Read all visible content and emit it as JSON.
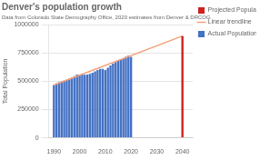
{
  "chart_data": {
    "type": "bar",
    "title": "Denver's population growth",
    "subtitle": "Data from Colorado State Demography Office, 2020 estimates from Denver & DRCOG",
    "ylabel": "Total Population",
    "series": [
      {
        "name": "Projected Population",
        "color": "#cc2222",
        "x": [
          2040
        ],
        "values": [
          900000
        ]
      },
      {
        "name": "Linear trendline",
        "type": "line",
        "color": "#f4a07a",
        "x": [
          1990,
          2040
        ],
        "values": [
          467610,
          900000
        ]
      },
      {
        "name": "Actual Population",
        "color": "#4472c4",
        "x": [
          1990,
          1991,
          1992,
          1993,
          1994,
          1995,
          1996,
          1997,
          1998,
          1999,
          2000,
          2001,
          2002,
          2003,
          2004,
          2005,
          2006,
          2007,
          2008,
          2009,
          2010,
          2011,
          2012,
          2013,
          2014,
          2015,
          2016,
          2017,
          2018,
          2019,
          2020
        ],
        "values": [
          467610,
          480520,
          490760,
          498320,
          505750,
          512400,
          521100,
          532300,
          546000,
          560000,
          554636,
          560000,
          557900,
          560000,
          565000,
          576000,
          588000,
          599000,
          610000,
          610000,
          600158,
          620000,
          640000,
          655000,
          670000,
          683000,
          693000,
          704000,
          716000,
          727000,
          715522
        ]
      }
    ],
    "xlim": [
      1988,
      2044
    ],
    "xticks": [
      1990,
      2000,
      2010,
      2020,
      2030,
      2040
    ],
    "ylim": [
      0,
      1000000
    ],
    "yticks": [
      0,
      250000,
      500000,
      750000,
      1000000
    ],
    "grid": "y",
    "legend": "right"
  }
}
